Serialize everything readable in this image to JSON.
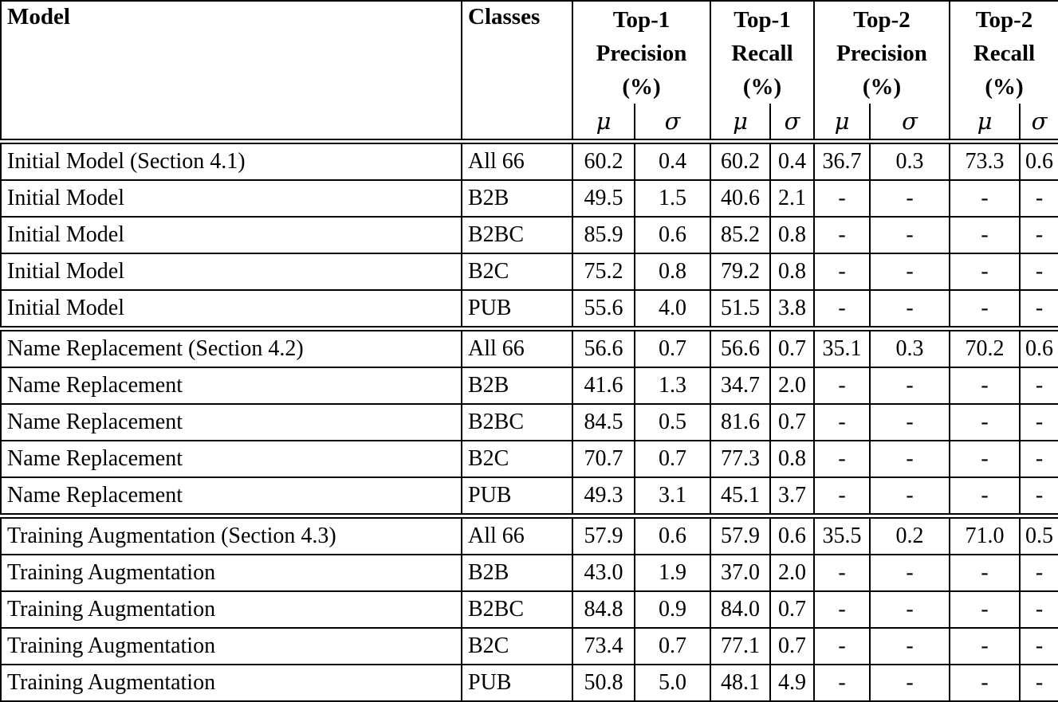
{
  "table": {
    "header": {
      "model": "Model",
      "classes": "Classes",
      "groups": [
        {
          "line1": "Top-1",
          "line2": "Precision",
          "line3": "(%)"
        },
        {
          "line1": "Top-1",
          "line2": "Recall",
          "line3": "(%)"
        },
        {
          "line1": "Top-2",
          "line2": "Precision",
          "line3": "(%)"
        },
        {
          "line1": "Top-2",
          "line2": "Recall",
          "line3": "(%)"
        }
      ],
      "mu": "μ",
      "sigma": "σ"
    },
    "blocks": [
      {
        "rows": [
          {
            "model": "Initial Model (Section 4.1)",
            "classes": "All 66",
            "values": [
              "60.2",
              "0.4",
              "60.2",
              "0.4",
              "36.7",
              "0.3",
              "73.3",
              "0.6"
            ]
          },
          {
            "model": "Initial Model",
            "classes": "B2B",
            "values": [
              "49.5",
              "1.5",
              "40.6",
              "2.1",
              "-",
              "-",
              "-",
              "-"
            ]
          },
          {
            "model": "Initial Model",
            "classes": "B2BC",
            "values": [
              "85.9",
              "0.6",
              "85.2",
              "0.8",
              "-",
              "-",
              "-",
              "-"
            ]
          },
          {
            "model": "Initial Model",
            "classes": "B2C",
            "values": [
              "75.2",
              "0.8",
              "79.2",
              "0.8",
              "-",
              "-",
              "-",
              "-"
            ]
          },
          {
            "model": "Initial Model",
            "classes": "PUB",
            "values": [
              "55.6",
              "4.0",
              "51.5",
              "3.8",
              "-",
              "-",
              "-",
              "-"
            ]
          }
        ]
      },
      {
        "rows": [
          {
            "model": "Name Replacement (Section 4.2)",
            "classes": "All 66",
            "values": [
              "56.6",
              "0.7",
              "56.6",
              "0.7",
              "35.1",
              "0.3",
              "70.2",
              "0.6"
            ]
          },
          {
            "model": "Name Replacement",
            "classes": "B2B",
            "values": [
              "41.6",
              "1.3",
              "34.7",
              "2.0",
              "-",
              "-",
              "-",
              "-"
            ]
          },
          {
            "model": "Name Replacement",
            "classes": "B2BC",
            "values": [
              "84.5",
              "0.5",
              "81.6",
              "0.7",
              "-",
              "-",
              "-",
              "-"
            ]
          },
          {
            "model": "Name Replacement",
            "classes": "B2C",
            "values": [
              "70.7",
              "0.7",
              "77.3",
              "0.8",
              "-",
              "-",
              "-",
              "-"
            ]
          },
          {
            "model": "Name Replacement",
            "classes": "PUB",
            "values": [
              "49.3",
              "3.1",
              "45.1",
              "3.7",
              "-",
              "-",
              "-",
              "-"
            ]
          }
        ]
      },
      {
        "rows": [
          {
            "model": "Training Augmentation (Section 4.3)",
            "classes": "All 66",
            "values": [
              "57.9",
              "0.6",
              "57.9",
              "0.6",
              "35.5",
              "0.2",
              "71.0",
              "0.5"
            ]
          },
          {
            "model": "Training Augmentation",
            "classes": "B2B",
            "values": [
              "43.0",
              "1.9",
              "37.0",
              "2.0",
              "-",
              "-",
              "-",
              "-"
            ]
          },
          {
            "model": "Training Augmentation",
            "classes": "B2BC",
            "values": [
              "84.8",
              "0.9",
              "84.0",
              "0.7",
              "-",
              "-",
              "-",
              "-"
            ]
          },
          {
            "model": "Training Augmentation",
            "classes": "B2C",
            "values": [
              "73.4",
              "0.7",
              "77.1",
              "0.7",
              "-",
              "-",
              "-",
              "-"
            ]
          },
          {
            "model": "Training Augmentation",
            "classes": "PUB",
            "values": [
              "50.8",
              "5.0",
              "48.1",
              "4.9",
              "-",
              "-",
              "-",
              "-"
            ]
          }
        ]
      }
    ]
  }
}
